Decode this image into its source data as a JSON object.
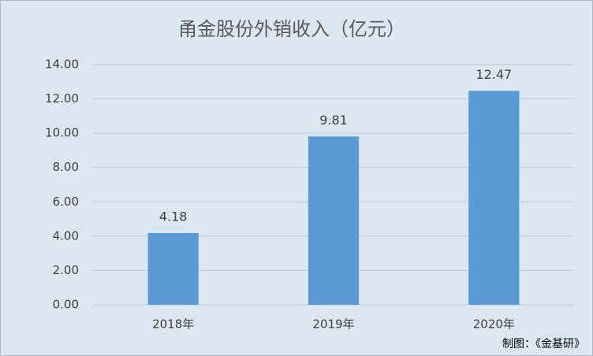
{
  "chart_data": {
    "type": "bar",
    "title": "甬金股份外销收入（亿元）",
    "categories": [
      "2018年",
      "2019年",
      "2020年"
    ],
    "values": [
      4.18,
      9.81,
      12.47
    ],
    "color": "#5b9bd5",
    "ylim": [
      0,
      14
    ],
    "yticks": [
      {
        "value": 0,
        "label": "0.00"
      },
      {
        "value": 2,
        "label": "2.00"
      },
      {
        "value": 4,
        "label": "4.00"
      },
      {
        "value": 6,
        "label": "6.00"
      },
      {
        "value": 8,
        "label": "8.00"
      },
      {
        "value": 10,
        "label": "10.00"
      },
      {
        "value": 12,
        "label": "12.00"
      },
      {
        "value": 14,
        "label": "14.00"
      }
    ],
    "grid": true,
    "annotation": "制图：《金基研》"
  }
}
